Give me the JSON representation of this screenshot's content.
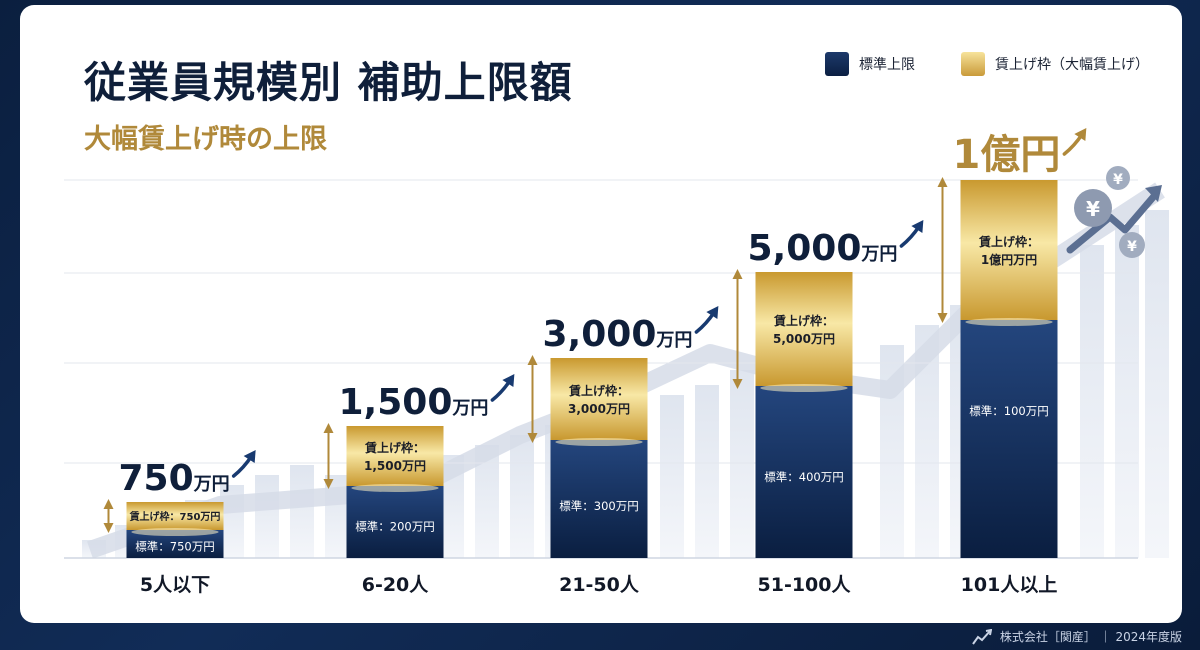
{
  "title": "従業員規模別 補助上限額",
  "subtitle": "大幅賃上げ時の上限",
  "legend": {
    "standard": "標準上限",
    "bonus": "賃上げ枠（大幅賃上げ）"
  },
  "footer": "株式会社［関産］ ｜ 2024年度版",
  "colors": {
    "navy": "#0f2a55",
    "gold": "#d9b04c",
    "accent": "#b0893a"
  },
  "chart_data": {
    "type": "bar",
    "stacked": true,
    "categories": [
      "5人以下",
      "6-20人",
      "21-50人",
      "51-100人",
      "101人以上"
    ],
    "series": [
      {
        "name": "標準上限",
        "values": [
          750,
          200,
          300,
          400,
          100
        ],
        "labels": [
          "標準：750万円",
          "標準：200万円",
          "標準：300万円",
          "標準：400万円",
          "標準：100万円"
        ]
      },
      {
        "name": "賃上げ枠（大幅賃上げ）",
        "values": [
          750,
          1500,
          3000,
          5000,
          10000
        ],
        "labels": [
          "賃上げ枠：750万円",
          "賃上げ枠：1,500万円",
          "賃上げ枠：3,000万円",
          "賃上げ枠：5,000万円",
          "賃上げ枠：1億円万円"
        ]
      }
    ],
    "totals": [
      {
        "num": "750",
        "unit": "万円"
      },
      {
        "num": "1,500",
        "unit": "万円"
      },
      {
        "num": "3,000",
        "unit": "万円"
      },
      {
        "num": "5,000",
        "unit": "万円"
      },
      {
        "num": "1億円",
        "unit": ""
      }
    ],
    "grid": true,
    "legend_position": "top-right"
  }
}
